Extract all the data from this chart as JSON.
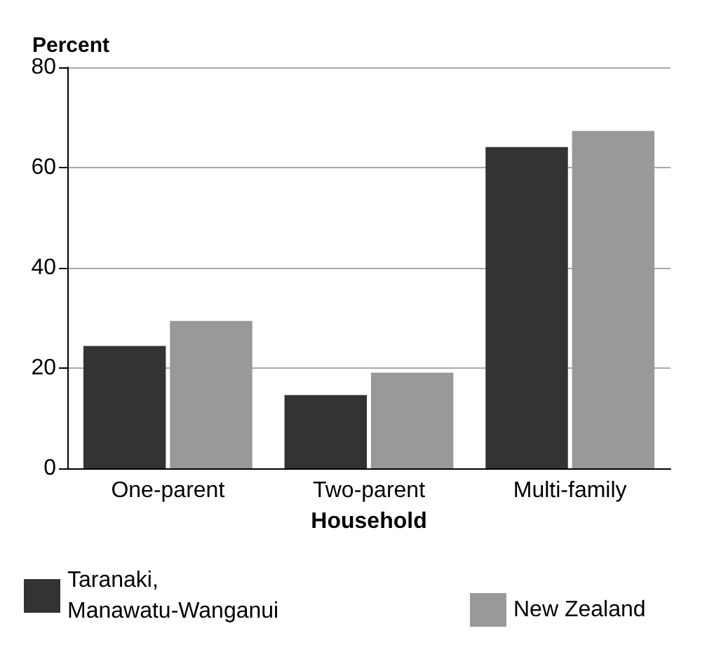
{
  "chart_data": {
    "type": "bar",
    "xlabel": "Household",
    "ylabel": "Percent",
    "categories": [
      "One-parent",
      "Two-parent",
      "Multi-family"
    ],
    "series": [
      {
        "name": "Taranaki, Manawatu-Wanganui",
        "color": "#333333",
        "values": [
          24.4,
          14.6,
          64.1
        ]
      },
      {
        "name": "New Zealand",
        "color": "#999999",
        "values": [
          29.4,
          19.1,
          67.3
        ]
      }
    ],
    "ylim": [
      0,
      80
    ],
    "yticks": [
      0,
      20,
      40,
      60,
      80
    ],
    "grid": "y",
    "legend": "bottom"
  }
}
